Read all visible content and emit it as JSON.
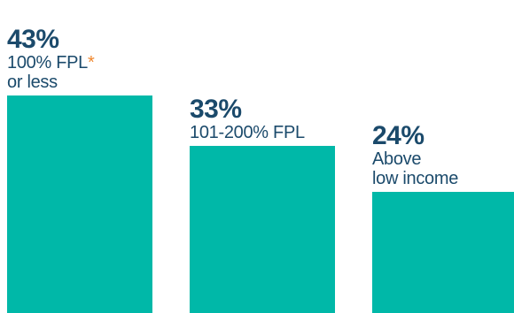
{
  "colors": {
    "bar": "#00b8a8",
    "text": "#1b4a6b",
    "asterisk": "#f0872e"
  },
  "chart_data": {
    "type": "bar",
    "categories": [
      "100% FPL* or less",
      "101-200% FPL",
      "Above low income"
    ],
    "values": [
      43,
      33,
      24
    ],
    "value_labels": [
      "43%",
      "33%",
      "24%"
    ],
    "category_lines": [
      [
        "100% FPL",
        "or less"
      ],
      [
        "101-200% FPL"
      ],
      [
        "Above",
        "low income"
      ]
    ],
    "footnote_marker": "*",
    "title": "",
    "xlabel": "",
    "ylabel": "",
    "ylim": [
      0,
      43
    ],
    "grid": false,
    "legend": "none"
  }
}
